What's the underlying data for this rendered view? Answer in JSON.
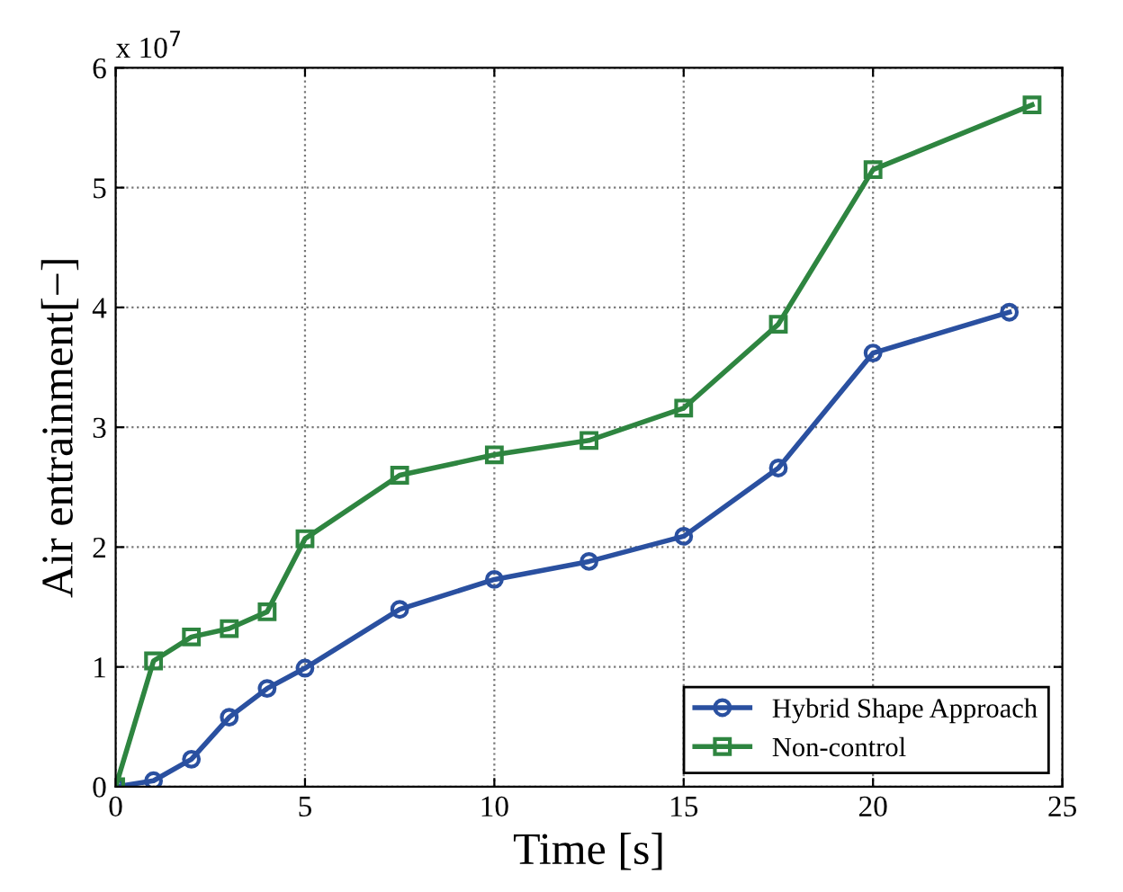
{
  "chart_data": {
    "type": "line",
    "xlabel": "Time [s]",
    "ylabel": "Air entrainment[−]",
    "annotations": [
      "x 10$^{7}$"
    ],
    "xlim": [
      0,
      25
    ],
    "xticks": [
      0,
      5,
      10,
      15,
      20,
      25
    ],
    "ylim": [
      0,
      6
    ],
    "yticks": [
      0,
      1,
      2,
      3,
      4,
      5,
      6
    ],
    "grid": true,
    "legend": "bottom right",
    "line_style": "solid",
    "series": [
      {
        "name": "Hybrid Shape Approach",
        "color": "#2a50a0",
        "marker": "circle",
        "x": [
          0,
          1,
          2,
          3,
          4,
          5,
          7.5,
          10,
          12.5,
          15,
          17.5,
          20,
          23.6
        ],
        "values": [
          0,
          0.05,
          0.23,
          0.58,
          0.82,
          0.99,
          1.48,
          1.73,
          1.88,
          2.09,
          2.66,
          3.62,
          3.96
        ]
      },
      {
        "name": "Non-control",
        "color": "#2e8540",
        "marker": "square",
        "x": [
          0,
          1,
          2,
          3,
          4,
          5,
          7.5,
          10,
          12.5,
          15,
          17.5,
          20,
          24.2
        ],
        "values": [
          0,
          1.05,
          1.25,
          1.32,
          1.46,
          2.07,
          2.6,
          2.77,
          2.89,
          3.16,
          3.86,
          5.15,
          5.69
        ]
      }
    ]
  }
}
